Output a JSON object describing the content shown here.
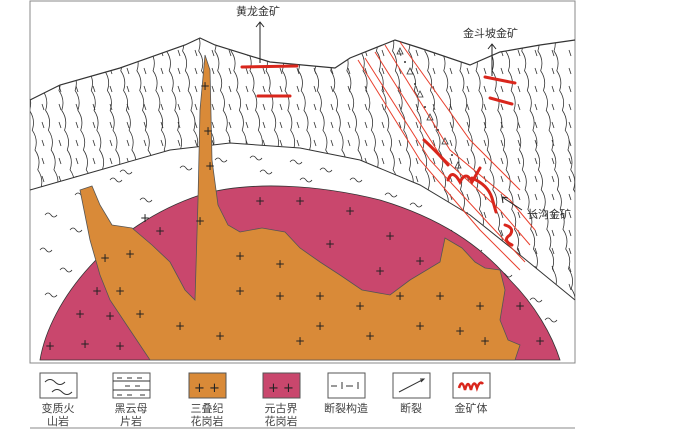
{
  "labels": {
    "huanglong": "黄龙金矿",
    "jindoupo": "金斗坡金矿",
    "changgou": "长沟金矿"
  },
  "legend": [
    {
      "icon": "volcanic-rock-pattern",
      "line1": "变质火",
      "line2": "山岩"
    },
    {
      "icon": "biotite-schist-pattern",
      "line1": "黑云母",
      "line2": "片岩"
    },
    {
      "icon": "triassic-granite-pattern",
      "line1": "三叠纪",
      "line2": "花岗岩",
      "color": "#d98a38"
    },
    {
      "icon": "proterozoic-granite-pattern",
      "line1": "元古界",
      "line2": "花岗岩",
      "color": "#c9476d"
    },
    {
      "icon": "fault-structure-pattern",
      "line1": "断裂构造",
      "line2": ""
    },
    {
      "icon": "fault-pattern",
      "line1": "断裂",
      "line2": ""
    },
    {
      "icon": "ore-body-pattern",
      "line1": "金矿体",
      "line2": "",
      "color": "#d9261c"
    }
  ],
  "colors": {
    "triassic": "#d98a38",
    "proterozoic": "#c9476d",
    "ore": "#d9261c"
  }
}
